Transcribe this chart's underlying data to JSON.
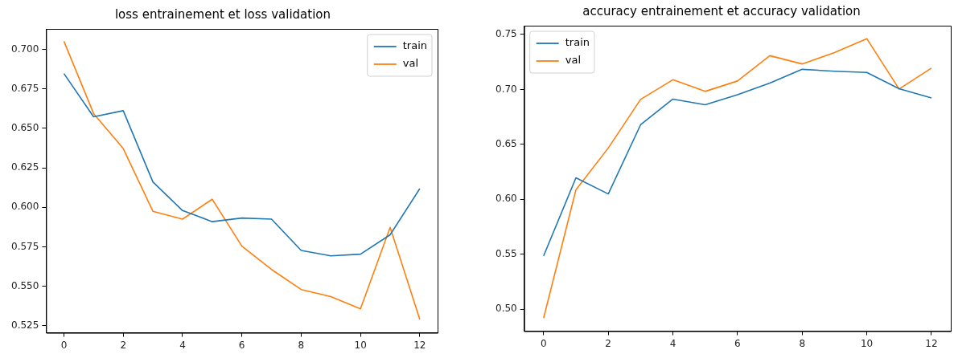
{
  "chart_data": [
    {
      "type": "line",
      "title": "loss entrainement et loss validation",
      "x": [
        0,
        1,
        2,
        3,
        4,
        5,
        6,
        7,
        8,
        9,
        10,
        11,
        12
      ],
      "xlim": [
        -0.6,
        12.6
      ],
      "xticks": [
        0,
        2,
        4,
        6,
        8,
        10,
        12
      ],
      "ylim": [
        0.5205,
        0.713
      ],
      "yticks": [
        {
          "value": 0.525,
          "label": "0.525"
        },
        {
          "value": 0.55,
          "label": "0.550"
        },
        {
          "value": 0.575,
          "label": "0.575"
        },
        {
          "value": 0.6,
          "label": "0.600"
        },
        {
          "value": 0.625,
          "label": "0.625"
        },
        {
          "value": 0.65,
          "label": "0.650"
        },
        {
          "value": 0.675,
          "label": "0.675"
        },
        {
          "value": 0.7,
          "label": "0.700"
        }
      ],
      "grid": false,
      "legend": "top right",
      "series": [
        {
          "name": "train",
          "color": "#1f77b4",
          "values": [
            0.6847,
            0.6573,
            0.6612,
            0.6161,
            0.5979,
            0.5909,
            0.5932,
            0.5925,
            0.5727,
            0.5692,
            0.5703,
            0.5826,
            0.6118
          ]
        },
        {
          "name": "val",
          "color": "#ff7f0e",
          "values": [
            0.7052,
            0.6594,
            0.6372,
            0.5975,
            0.5925,
            0.6051,
            0.5754,
            0.5606,
            0.5479,
            0.5434,
            0.5357,
            0.5873,
            0.529
          ]
        }
      ]
    },
    {
      "type": "line",
      "title": "accuracy entrainement et accuracy validation",
      "x": [
        0,
        1,
        2,
        3,
        4,
        5,
        6,
        7,
        8,
        9,
        10,
        11,
        12
      ],
      "xlim": [
        -0.6,
        12.6
      ],
      "xticks": [
        0,
        2,
        4,
        6,
        8,
        10,
        12
      ],
      "ylim": [
        0.48,
        0.758
      ],
      "yticks": [
        {
          "value": 0.5,
          "label": "0.50"
        },
        {
          "value": 0.55,
          "label": "0.55"
        },
        {
          "value": 0.6,
          "label": "0.60"
        },
        {
          "value": 0.65,
          "label": "0.65"
        },
        {
          "value": 0.7,
          "label": "0.70"
        },
        {
          "value": 0.75,
          "label": "0.75"
        }
      ],
      "grid": false,
      "legend": "top left",
      "series": [
        {
          "name": "train",
          "color": "#1f77b4",
          "values": [
            0.5485,
            0.6196,
            0.6049,
            0.6678,
            0.6912,
            0.686,
            0.6952,
            0.7058,
            0.7183,
            0.7166,
            0.7155,
            0.7007,
            0.6922
          ]
        },
        {
          "name": "val",
          "color": "#ff7f0e",
          "values": [
            0.4919,
            0.6087,
            0.6467,
            0.6909,
            0.7088,
            0.6982,
            0.7077,
            0.7307,
            0.7232,
            0.7335,
            0.7462,
            0.7004,
            0.7194
          ]
        }
      ]
    }
  ]
}
